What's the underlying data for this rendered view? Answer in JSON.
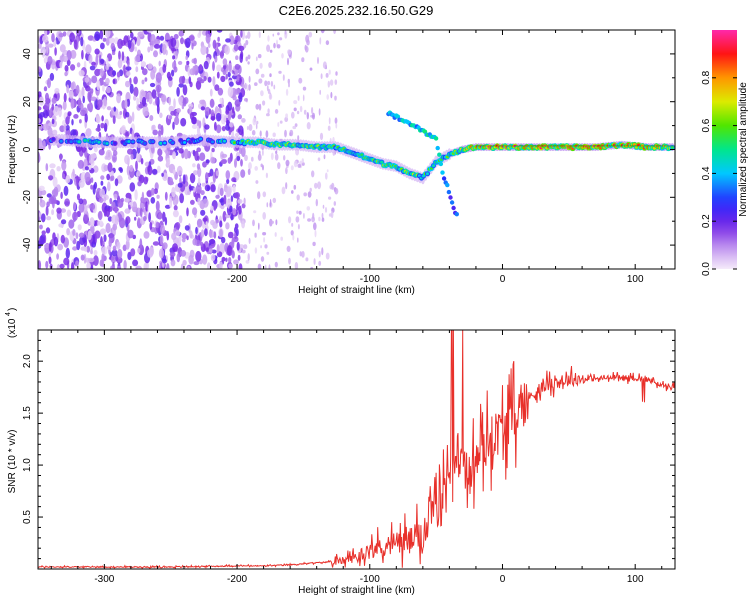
{
  "title": "C2E6.2025.232.16.50.G29",
  "chart_data": [
    {
      "type": "heatmap",
      "name": "spectrogram",
      "xlabel": "Height of straight line (km)",
      "ylabel": "Frequency (Hz)",
      "xlim": [
        -350,
        130
      ],
      "ylim": [
        -50,
        50
      ],
      "xticks": [
        "-300",
        "-200",
        "-100",
        "0",
        "100"
      ],
      "xtick_values": [
        -300,
        -200,
        -100,
        0,
        100
      ],
      "yticks": [
        "-40",
        "-20",
        "0",
        "20",
        "40"
      ],
      "ytick_values": [
        -40,
        -20,
        0,
        20,
        40
      ],
      "colorbar": {
        "label": "Normalized spectral amplitude",
        "range": [
          0,
          1
        ],
        "ticks": [
          "0.0",
          "0.2",
          "0.4",
          "0.6",
          "0.8"
        ],
        "tick_values": [
          0.0,
          0.2,
          0.4,
          0.6,
          0.8
        ]
      },
      "signal_track": [
        {
          "h": -330,
          "f": 4,
          "a": 0.35
        },
        {
          "h": -310,
          "f": 3,
          "a": 0.5
        },
        {
          "h": -290,
          "f": 3,
          "a": 0.35
        },
        {
          "h": -270,
          "f": 3,
          "a": 0.45
        },
        {
          "h": -250,
          "f": 3,
          "a": 0.4
        },
        {
          "h": -230,
          "f": 4,
          "a": 0.35
        },
        {
          "h": -200,
          "f": 3,
          "a": 0.55
        },
        {
          "h": -185,
          "f": 3,
          "a": 0.6
        },
        {
          "h": -170,
          "f": 2,
          "a": 0.65
        },
        {
          "h": -155,
          "f": 2,
          "a": 0.6
        },
        {
          "h": -140,
          "f": 1,
          "a": 0.6
        },
        {
          "h": -125,
          "f": 1,
          "a": 0.55
        },
        {
          "h": -110,
          "f": -2,
          "a": 0.6
        },
        {
          "h": -100,
          "f": -4,
          "a": 0.6
        },
        {
          "h": -90,
          "f": -6,
          "a": 0.6
        },
        {
          "h": -80,
          "f": -7,
          "a": 0.55
        },
        {
          "h": -70,
          "f": -10,
          "a": 0.65
        },
        {
          "h": -60,
          "f": -12,
          "a": 0.55
        },
        {
          "h": -50,
          "f": -5,
          "a": 0.5
        },
        {
          "h": -40,
          "f": -2,
          "a": 0.55
        },
        {
          "h": -30,
          "f": 0,
          "a": 0.7
        },
        {
          "h": -20,
          "f": 1,
          "a": 0.8
        },
        {
          "h": -10,
          "f": 1,
          "a": 0.85
        },
        {
          "h": 10,
          "f": 1,
          "a": 0.85
        },
        {
          "h": 30,
          "f": 1,
          "a": 0.85
        },
        {
          "h": 50,
          "f": 1,
          "a": 0.85
        },
        {
          "h": 70,
          "f": 1,
          "a": 0.85
        },
        {
          "h": 90,
          "f": 2,
          "a": 0.8
        },
        {
          "h": 110,
          "f": 1,
          "a": 0.8
        },
        {
          "h": 125,
          "f": 1,
          "a": 0.75
        }
      ],
      "branch_track": [
        {
          "h": -85,
          "f": 15,
          "a": 0.4
        },
        {
          "h": -75,
          "f": 12,
          "a": 0.4
        },
        {
          "h": -60,
          "f": 8,
          "a": 0.45
        },
        {
          "h": -50,
          "f": 4,
          "a": 0.5
        },
        {
          "h": -45,
          "f": -10,
          "a": 0.35
        },
        {
          "h": -40,
          "f": -18,
          "a": 0.3
        },
        {
          "h": -35,
          "f": -27,
          "a": 0.3
        }
      ]
    },
    {
      "type": "line",
      "name": "snr",
      "xlabel": "Height of straight line (km)",
      "ylabel": "SNR (10 * v/v)",
      "multiplier": "(x10",
      "multiplier_exp": "4",
      "xlim": [
        -350,
        130
      ],
      "ylim": [
        0,
        2.3
      ],
      "xticks": [
        "-300",
        "-200",
        "-100",
        "0",
        "100"
      ],
      "xtick_values": [
        -300,
        -200,
        -100,
        0,
        100
      ],
      "yticks": [
        "0.5",
        "1.0",
        "1.5",
        "2.0"
      ],
      "ytick_values": [
        0.5,
        1.0,
        1.5,
        2.0
      ],
      "color": "#e8302a",
      "series": [
        {
          "name": "SNR",
          "x": [
            -350,
            -300,
            -250,
            -200,
            -180,
            -160,
            -140,
            -120,
            -110,
            -100,
            -90,
            -80,
            -70,
            -60,
            -55,
            -50,
            -45,
            -40,
            -35,
            -30,
            -25,
            -20,
            -15,
            -10,
            -5,
            0,
            10,
            20,
            30,
            40,
            50,
            60,
            70,
            80,
            90,
            100,
            105,
            110,
            115,
            120,
            130
          ],
          "y": [
            0.02,
            0.02,
            0.02,
            0.03,
            0.03,
            0.04,
            0.06,
            0.08,
            0.12,
            0.18,
            0.22,
            0.25,
            0.28,
            0.32,
            0.45,
            0.6,
            0.8,
            1.0,
            1.15,
            1.0,
            0.9,
            1.05,
            1.15,
            1.25,
            1.3,
            1.35,
            1.5,
            1.65,
            1.75,
            1.8,
            1.82,
            1.83,
            1.83,
            1.84,
            1.84,
            1.84,
            1.83,
            1.82,
            1.8,
            1.77,
            1.74
          ]
        }
      ]
    }
  ]
}
